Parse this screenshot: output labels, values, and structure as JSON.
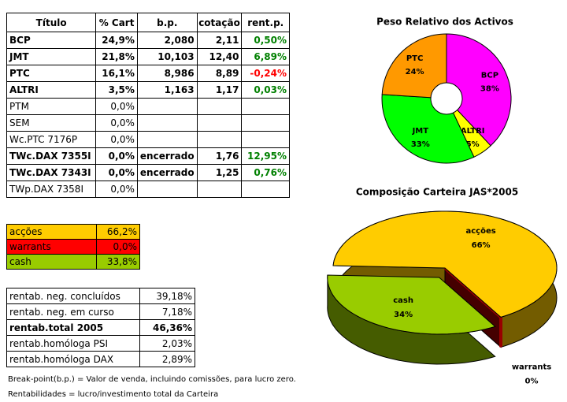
{
  "holdings_table": {
    "headers": [
      "Título",
      "% Cart",
      "b.p.",
      "cotação",
      "rent.p."
    ],
    "rows": [
      {
        "cells": [
          "BCP",
          "24,9%",
          "2,080",
          "2,11",
          "0,50%"
        ],
        "bold": true
      },
      {
        "cells": [
          "JMT",
          "21,8%",
          "10,103",
          "12,40",
          "6,89%"
        ],
        "bold": true
      },
      {
        "cells": [
          "PTC",
          "16,1%",
          "8,986",
          "8,89",
          "-0,24%"
        ],
        "bold": true
      },
      {
        "cells": [
          "ALTRI",
          "3,5%",
          "1,163",
          "1,17",
          "0,03%"
        ],
        "bold": true
      },
      {
        "cells": [
          "PTM",
          "0,0%",
          null,
          null,
          null
        ],
        "bold": false
      },
      {
        "cells": [
          "SEM",
          "0,0%",
          null,
          null,
          null
        ],
        "bold": false
      },
      {
        "cells": [
          "Wc.PTC 7176P",
          "0,0%",
          null,
          null,
          null
        ],
        "bold": false
      },
      {
        "cells": [
          "TWc.DAX 7355I",
          "0,0%",
          "encerrado",
          "1,76",
          "12,95%"
        ],
        "bold": true
      },
      {
        "cells": [
          "TWc.DAX 7343I",
          "0,0%",
          "encerrado",
          "1,25",
          "0,76%"
        ],
        "bold": true
      },
      {
        "cells": [
          "TWp.DAX 7358I",
          "0,0%",
          null,
          null,
          null
        ],
        "bold": false
      }
    ]
  },
  "allocation_table": {
    "rows": [
      {
        "cells": [
          "acções",
          "66,2%"
        ],
        "color": "#ffcc00"
      },
      {
        "cells": [
          "warrants",
          "0,0%"
        ],
        "color": "#ff0000"
      },
      {
        "cells": [
          "cash",
          "33,8%"
        ],
        "color": "#99cc00"
      }
    ]
  },
  "returns_table": {
    "rows": [
      {
        "cells": [
          "rentab. neg. concluídos",
          "39,18%"
        ],
        "bold": false
      },
      {
        "cells": [
          "rentab. neg. em curso",
          "7,18%"
        ],
        "bold": false
      },
      {
        "cells": [
          "rentab.total 2005",
          "46,36%"
        ],
        "bold": true
      },
      {
        "cells": [
          "rentab.homóloga PSI",
          "2,03%"
        ],
        "bold": false
      },
      {
        "cells": [
          "rentab.homóloga DAX",
          "2,89%"
        ],
        "bold": false
      }
    ]
  },
  "notes": [
    "Break-point(b.p.) = Valor de venda, incluindo comissões, para lucro zero.",
    "Rentabilidades = lucro/investimento total da Carteira"
  ],
  "chart_data": [
    {
      "type": "pie",
      "title": "Peso Relativo dos Activos",
      "donut": true,
      "categories": [
        "BCP",
        "ALTRI",
        "JMT",
        "PTC"
      ],
      "values": [
        38,
        5,
        33,
        24
      ],
      "value_labels": [
        "38%",
        "5%",
        "33%",
        "24%"
      ],
      "colors": [
        "#ff00ff",
        "#ffff00",
        "#00ff00",
        "#ff9900"
      ]
    },
    {
      "type": "pie3d",
      "title": "Composição Carteira JAS*2005",
      "exploded": "cash",
      "categories": [
        "warrants",
        "cash",
        "acções"
      ],
      "values": [
        0,
        34,
        66
      ],
      "value_labels": [
        "0%",
        "34%",
        "66%"
      ],
      "colors": [
        "#990000",
        "#99cc00",
        "#ffcc00"
      ]
    }
  ]
}
